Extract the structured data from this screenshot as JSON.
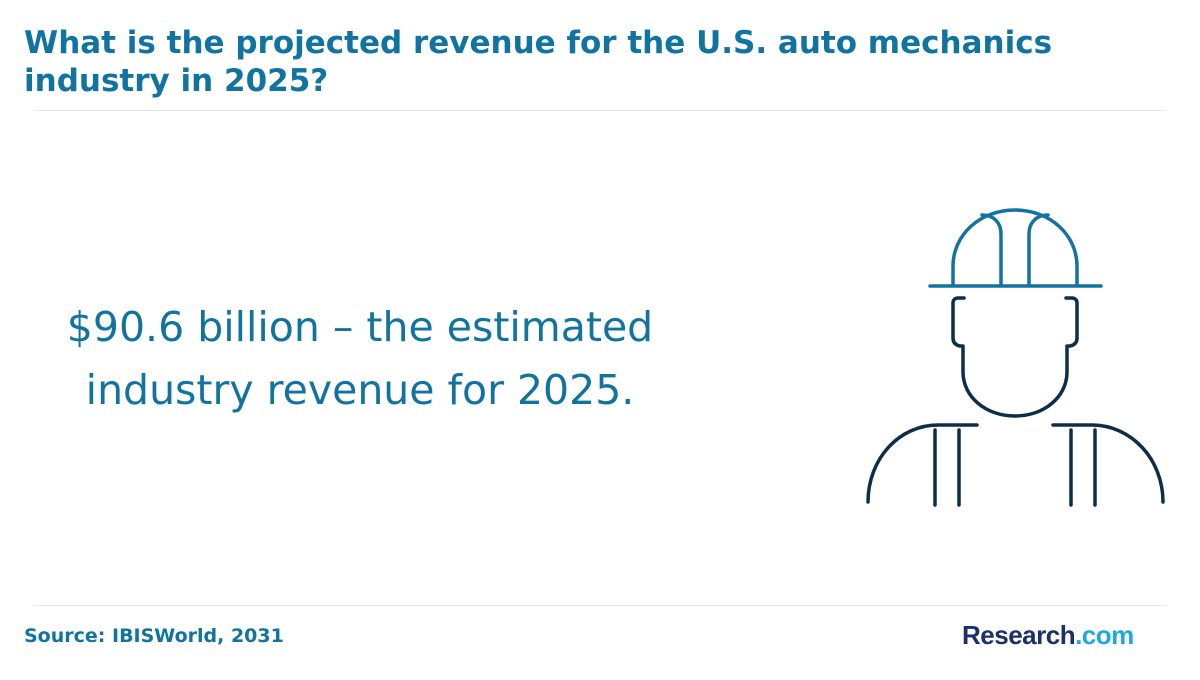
{
  "header": {
    "title": "What is the projected revenue for the U.S. auto mechanics industry in 2025?"
  },
  "stat": {
    "line1": "$90.6 billion – the estimated",
    "line2": "industry revenue for 2025."
  },
  "illustration": {
    "icon": "mechanic-hardhat-icon",
    "helmet_color": "#1173a0",
    "body_color": "#0e2e48"
  },
  "footer": {
    "source": "Source: IBISWorld, 2031",
    "logo_brand": "Research",
    "logo_tld": ".com"
  },
  "colors": {
    "accent": "#1173a0",
    "logo_dark": "#1b2f6b",
    "logo_light": "#1fa8e0"
  }
}
